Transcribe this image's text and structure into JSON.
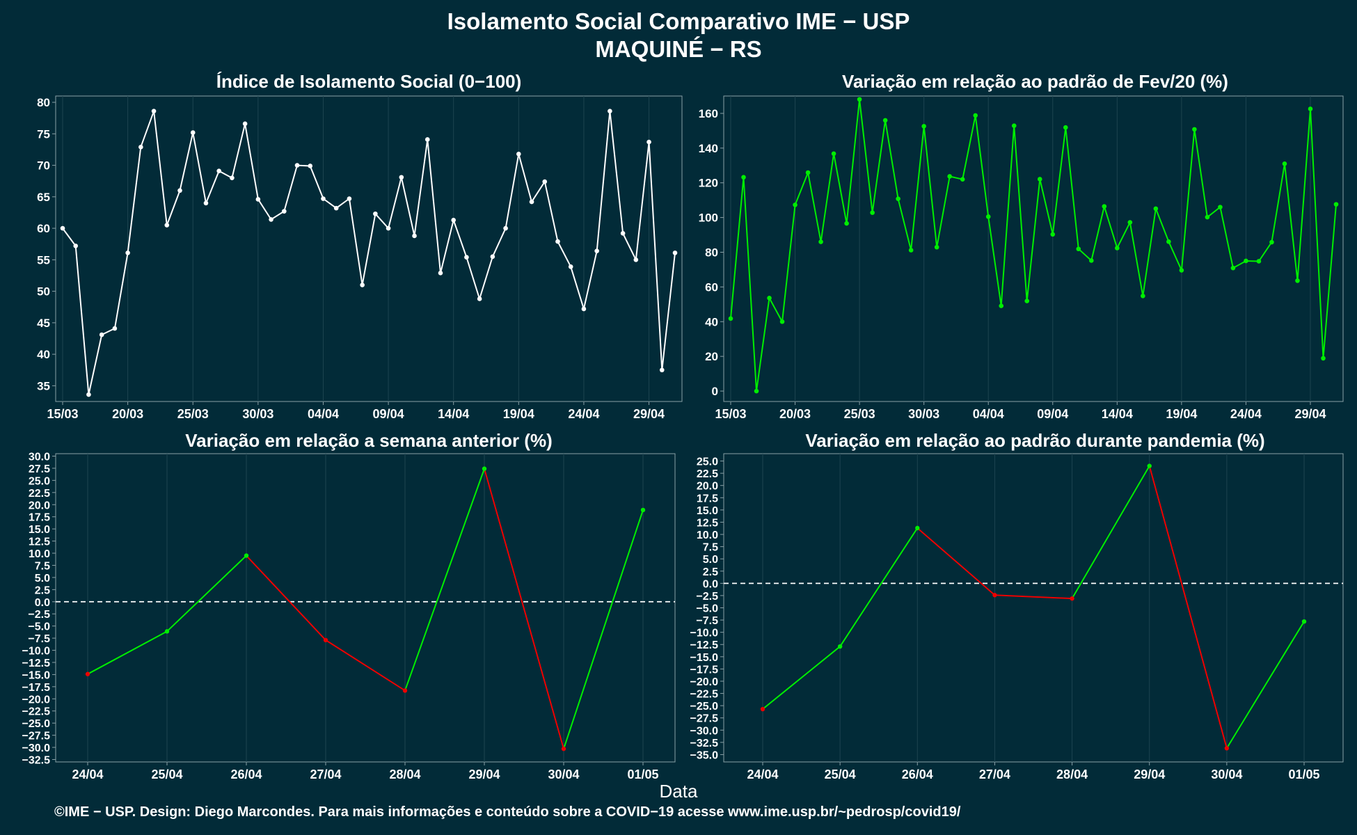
{
  "header": {
    "title": "Isolamento Social Comparativo IME − USP",
    "subtitle": "MAQUINÉ − RS"
  },
  "x_axis_label": "Data",
  "footer": "©IME − USP. Design: Diego Marcondes. Para mais informações e conteúdo sobre a COVID−19 acesse www.ime.usp.br/~pedrosp/covid19/",
  "colors": {
    "background": "#022b38",
    "white_line": "#ffffff",
    "green": "#00ee00",
    "red": "#ee0000",
    "gridline": "#1d4450",
    "axis": "#8aa0a6"
  },
  "chart_data": [
    {
      "type": "line",
      "title": "Índice de Isolamento Social (0−100)",
      "color": "white",
      "ylim": [
        32.5,
        81
      ],
      "yticks": [
        35,
        40,
        45,
        50,
        55,
        60,
        65,
        70,
        75,
        80
      ],
      "x_dates": [
        "15/03",
        "16/03",
        "17/03",
        "18/03",
        "19/03",
        "20/03",
        "21/03",
        "22/03",
        "23/03",
        "24/03",
        "25/03",
        "26/03",
        "27/03",
        "28/03",
        "29/03",
        "30/03",
        "31/03",
        "01/04",
        "02/04",
        "03/04",
        "04/04",
        "05/04",
        "06/04",
        "07/04",
        "08/04",
        "09/04",
        "10/04",
        "11/04",
        "12/04",
        "13/04",
        "14/04",
        "15/04",
        "16/04",
        "17/04",
        "18/04",
        "19/04",
        "20/04",
        "21/04",
        "22/04",
        "23/04",
        "24/04",
        "25/04",
        "26/04",
        "27/04",
        "28/04",
        "29/04",
        "30/04",
        "01/05"
      ],
      "xticks": [
        "15/03",
        "20/03",
        "25/03",
        "30/03",
        "04/04",
        "09/04",
        "14/04",
        "19/04",
        "24/04",
        "29/04"
      ],
      "values": [
        60.0,
        57.2,
        33.6,
        43.1,
        44.1,
        56.1,
        72.9,
        78.6,
        60.5,
        66.0,
        75.2,
        64.0,
        69.1,
        68.0,
        76.6,
        64.6,
        61.4,
        62.7,
        70.0,
        69.9,
        64.7,
        63.2,
        64.7,
        51.0,
        62.3,
        60.0,
        68.1,
        58.8,
        74.1,
        52.9,
        61.3,
        55.4,
        48.8,
        55.5,
        60.0,
        71.8,
        64.2,
        67.4,
        57.9,
        53.9,
        47.2,
        56.4,
        78.6,
        59.2,
        55.0,
        73.7,
        37.5,
        56.1
      ]
    },
    {
      "type": "line",
      "title": "Variação em relação ao padrão de Fev/20 (%)",
      "color": "green",
      "ylim": [
        -6,
        170
      ],
      "yticks": [
        0,
        20,
        40,
        60,
        80,
        100,
        120,
        140,
        160
      ],
      "x_dates": [
        "15/03",
        "16/03",
        "17/03",
        "18/03",
        "19/03",
        "20/03",
        "21/03",
        "22/03",
        "23/03",
        "24/03",
        "25/03",
        "26/03",
        "27/03",
        "28/03",
        "29/03",
        "30/03",
        "31/03",
        "01/04",
        "02/04",
        "03/04",
        "04/04",
        "05/04",
        "06/04",
        "07/04",
        "08/04",
        "09/04",
        "10/04",
        "11/04",
        "12/04",
        "13/04",
        "14/04",
        "15/04",
        "16/04",
        "17/04",
        "18/04",
        "19/04",
        "20/04",
        "21/04",
        "22/04",
        "23/04",
        "24/04",
        "25/04",
        "26/04",
        "27/04",
        "28/04",
        "29/04",
        "30/04",
        "01/05"
      ],
      "xticks": [
        "15/03",
        "20/03",
        "25/03",
        "30/03",
        "04/04",
        "09/04",
        "14/04",
        "19/04",
        "24/04",
        "29/04"
      ],
      "values": [
        41.8,
        123.2,
        0.0,
        53.6,
        40.0,
        107.3,
        125.9,
        86.0,
        136.8,
        96.6,
        168.1,
        102.8,
        156.0,
        110.8,
        81.2,
        152.6,
        82.9,
        123.7,
        122.0,
        158.8,
        100.5,
        49.1,
        152.9,
        51.9,
        122.1,
        90.3,
        151.9,
        81.9,
        75.2,
        106.4,
        82.4,
        97.2,
        54.8,
        105.1,
        86.1,
        69.6,
        150.8,
        100.2,
        106.0,
        70.9,
        75.0,
        74.8,
        85.8,
        131.0,
        63.6,
        162.6,
        18.9,
        107.6
      ]
    },
    {
      "type": "line",
      "title": "Variação em relação a semana anterior (%)",
      "colored_segments": "green when increasing, red when decreasing",
      "reference_line": 0,
      "ylim": [
        -33,
        30.5
      ],
      "yticks": [
        30,
        27.5,
        25,
        22.5,
        20,
        17.5,
        15,
        12.5,
        10,
        7.5,
        5,
        2.5,
        0,
        -2.5,
        -5,
        -7.5,
        -10,
        -12.5,
        -15,
        -17.5,
        -20,
        -22.5,
        -25,
        -27.5,
        -30,
        -32.5
      ],
      "ytick_labels": [
        "30.0",
        "27.5",
        "25.0",
        "22.5",
        "20.0",
        "17.5",
        "15.0",
        "12.5",
        "10.0",
        "7.5",
        "5.0",
        "2.5",
        "0.0",
        "−2.5",
        "−5.0",
        "−7.5",
        "−10.0",
        "−12.5",
        "−15.0",
        "−17.5",
        "−20.0",
        "−22.5",
        "−25.0",
        "−27.5",
        "−30.0",
        "−32.5"
      ],
      "categories": [
        "24/04",
        "25/04",
        "26/04",
        "27/04",
        "28/04",
        "29/04",
        "30/04",
        "01/05"
      ],
      "values": [
        -14.9,
        -6.1,
        9.5,
        -7.9,
        -18.3,
        27.4,
        -30.3,
        18.9
      ]
    },
    {
      "type": "line",
      "title": "Variação em relação ao padrão durante pandemia (%)",
      "colored_segments": "green when increasing, red when decreasing",
      "reference_line": 0,
      "ylim": [
        -36.5,
        26.5
      ],
      "yticks": [
        25,
        22.5,
        20,
        17.5,
        15,
        12.5,
        10,
        7.5,
        5,
        2.5,
        0,
        -2.5,
        -5,
        -7.5,
        -10,
        -12.5,
        -15,
        -17.5,
        -20,
        -22.5,
        -25,
        -27.5,
        -30,
        -32.5,
        -35
      ],
      "ytick_labels": [
        "25.0",
        "22.5",
        "20.0",
        "17.5",
        "15.0",
        "12.5",
        "10.0",
        "7.5",
        "5.0",
        "2.5",
        "0.0",
        "−2.5",
        "−5.0",
        "−7.5",
        "−10.0",
        "−12.5",
        "−15.0",
        "−17.5",
        "−20.0",
        "−22.5",
        "−25.0",
        "−27.5",
        "−30.0",
        "−32.5",
        "−35.0"
      ],
      "categories": [
        "24/04",
        "25/04",
        "26/04",
        "27/04",
        "28/04",
        "29/04",
        "30/04",
        "01/05"
      ],
      "values": [
        -25.7,
        -12.9,
        11.3,
        -2.4,
        -3.1,
        24.0,
        -33.7,
        -7.8
      ]
    }
  ]
}
